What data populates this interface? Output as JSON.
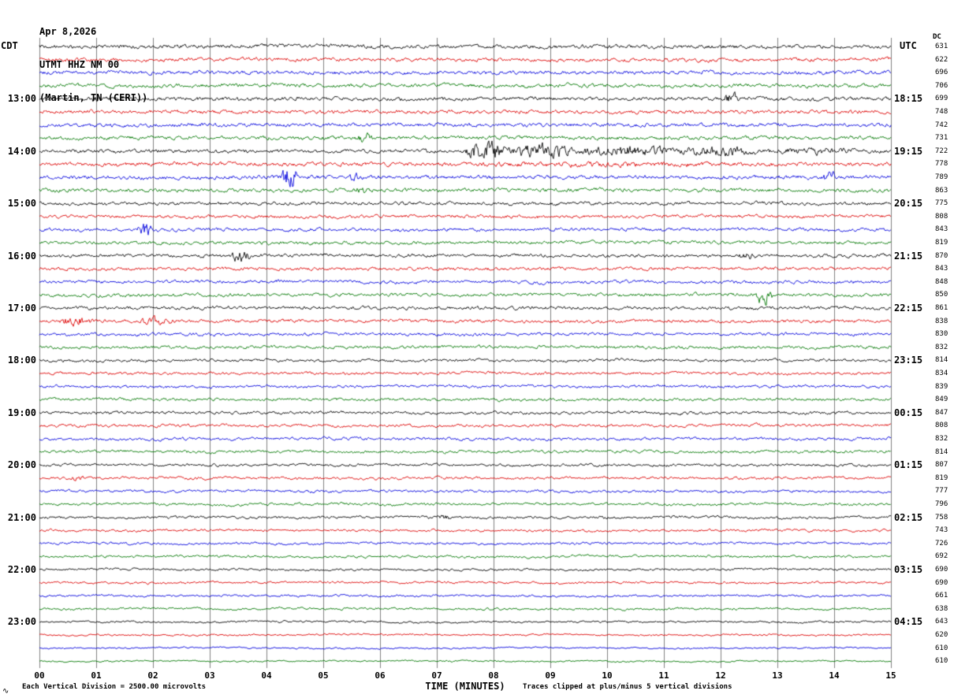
{
  "header": {
    "date": "Apr 8,2026",
    "station": "UTMT HHZ NM 00",
    "location": "(Martin, TN (CERI))"
  },
  "axes": {
    "left_tz": "CDT",
    "right_tz": "UTC",
    "right_col": "DC",
    "x_title": "TIME (MINUTES)"
  },
  "footer": {
    "marker": "∿",
    "left": "Each Vertical Division = 2500.00 microvolts",
    "right": "Traces clipped at plus/minus 5 vertical divisions"
  },
  "chart_data": {
    "type": "line",
    "title": "Helicorder seismogram, station UTMT HHZ NM 00, Martin TN (CERI), Apr 8, 2026",
    "xlabel": "TIME (MINUTES)",
    "ylabel": "",
    "x_range_minutes": [
      0,
      15
    ],
    "x_ticks": [
      "00",
      "01",
      "02",
      "03",
      "04",
      "05",
      "06",
      "07",
      "08",
      "09",
      "10",
      "11",
      "12",
      "13",
      "14",
      "15"
    ],
    "grid": "vertical-only",
    "scale_note": "Each Vertical Division = 2500.00 microvolts",
    "clip_note": "Traces clipped at plus/minus 5 vertical divisions",
    "colors": {
      "trace_cycle": [
        "#000000",
        "#dd0000",
        "#0000dd",
        "#007700"
      ],
      "grid": "#808080",
      "text": "#000000",
      "background": "#ffffff"
    },
    "rows": [
      {
        "dc": 631,
        "noise": 1.7
      },
      {
        "dc": 622,
        "noise": 1.7
      },
      {
        "dc": 696,
        "noise": 1.7
      },
      {
        "dc": 706,
        "noise": 1.7
      },
      {
        "dc": 699,
        "noise": 1.7,
        "cdt": "13:00",
        "utc": "18:15"
      },
      {
        "dc": 748,
        "noise": 1.7
      },
      {
        "dc": 742,
        "noise": 1.7
      },
      {
        "dc": 731,
        "noise": 1.7
      },
      {
        "dc": 722,
        "noise": 1.7,
        "cdt": "14:00",
        "utc": "19:15"
      },
      {
        "dc": 778,
        "noise": 1.8
      },
      {
        "dc": 789,
        "noise": 1.7
      },
      {
        "dc": 863,
        "noise": 1.7
      },
      {
        "dc": 775,
        "noise": 1.5,
        "cdt": "15:00",
        "utc": "20:15"
      },
      {
        "dc": 808,
        "noise": 1.5
      },
      {
        "dc": 843,
        "noise": 1.5
      },
      {
        "dc": 819,
        "noise": 1.5
      },
      {
        "dc": 870,
        "noise": 1.5,
        "cdt": "16:00",
        "utc": "21:15"
      },
      {
        "dc": 843,
        "noise": 1.5
      },
      {
        "dc": 848,
        "noise": 1.5
      },
      {
        "dc": 850,
        "noise": 1.5
      },
      {
        "dc": 861,
        "noise": 1.5,
        "cdt": "17:00",
        "utc": "22:15"
      },
      {
        "dc": 838,
        "noise": 1.5
      },
      {
        "dc": 830,
        "noise": 1.4
      },
      {
        "dc": 832,
        "noise": 1.4
      },
      {
        "dc": 814,
        "noise": 1.3,
        "cdt": "18:00",
        "utc": "23:15"
      },
      {
        "dc": 834,
        "noise": 1.3
      },
      {
        "dc": 839,
        "noise": 1.3
      },
      {
        "dc": 849,
        "noise": 1.3
      },
      {
        "dc": 847,
        "noise": 1.3,
        "cdt": "19:00",
        "utc": "00:15"
      },
      {
        "dc": 808,
        "noise": 1.3
      },
      {
        "dc": 832,
        "noise": 1.3
      },
      {
        "dc": 814,
        "noise": 1.3
      },
      {
        "dc": 807,
        "noise": 1.2,
        "cdt": "20:00",
        "utc": "01:15"
      },
      {
        "dc": 819,
        "noise": 1.2
      },
      {
        "dc": 777,
        "noise": 1.2
      },
      {
        "dc": 796,
        "noise": 1.2
      },
      {
        "dc": 758,
        "noise": 1.2,
        "cdt": "21:00",
        "utc": "02:15"
      },
      {
        "dc": 743,
        "noise": 1.1
      },
      {
        "dc": 726,
        "noise": 1.1
      },
      {
        "dc": 692,
        "noise": 1.1
      },
      {
        "dc": 690,
        "noise": 1.0,
        "cdt": "22:00",
        "utc": "03:15"
      },
      {
        "dc": 690,
        "noise": 1.0
      },
      {
        "dc": 661,
        "noise": 1.0
      },
      {
        "dc": 638,
        "noise": 1.0
      },
      {
        "dc": 643,
        "noise": 0.9,
        "cdt": "23:00",
        "utc": "04:15"
      },
      {
        "dc": 620,
        "noise": 0.8
      },
      {
        "dc": 610,
        "noise": 0.7
      },
      {
        "dc": 610,
        "noise": 0.7
      }
    ],
    "events": [
      {
        "row": 4,
        "start": 0.85,
        "end": 1.05,
        "amp": 2
      },
      {
        "row": 4,
        "start": 12.0,
        "end": 12.35,
        "amp": 4.5
      },
      {
        "row": 7,
        "start": 5.55,
        "end": 5.9,
        "amp": 3
      },
      {
        "row": 8,
        "start": 7.5,
        "end": 8.3,
        "amp": 9
      },
      {
        "row": 8,
        "start": 8.3,
        "end": 9.4,
        "amp": 6
      },
      {
        "row": 8,
        "start": 9.4,
        "end": 11.2,
        "amp": 4
      },
      {
        "row": 8,
        "start": 11.2,
        "end": 12.7,
        "amp": 3
      },
      {
        "row": 8,
        "start": 12.7,
        "end": 14.6,
        "amp": 1.6
      },
      {
        "row": 9,
        "start": 7.6,
        "end": 12.0,
        "amp": 0.8
      },
      {
        "row": 10,
        "start": 4.25,
        "end": 4.55,
        "amp": 11
      },
      {
        "row": 10,
        "start": 5.45,
        "end": 5.7,
        "amp": 2.5
      },
      {
        "row": 10,
        "start": 13.8,
        "end": 14.1,
        "amp": 4
      },
      {
        "row": 11,
        "start": 5.5,
        "end": 5.8,
        "amp": 2.2
      },
      {
        "row": 14,
        "start": 1.72,
        "end": 1.98,
        "amp": 8
      },
      {
        "row": 16,
        "start": 3.3,
        "end": 3.75,
        "amp": 5
      },
      {
        "row": 16,
        "start": 12.3,
        "end": 12.6,
        "amp": 2.2
      },
      {
        "row": 19,
        "start": 12.62,
        "end": 12.92,
        "amp": 9
      },
      {
        "row": 21,
        "start": 0.3,
        "end": 1.0,
        "amp": 3.2
      },
      {
        "row": 21,
        "start": 1.75,
        "end": 2.4,
        "amp": 3
      },
      {
        "row": 33,
        "start": 0.5,
        "end": 0.8,
        "amp": 1.8
      },
      {
        "row": 36,
        "start": 7.0,
        "end": 7.25,
        "amp": 1.8
      }
    ]
  }
}
